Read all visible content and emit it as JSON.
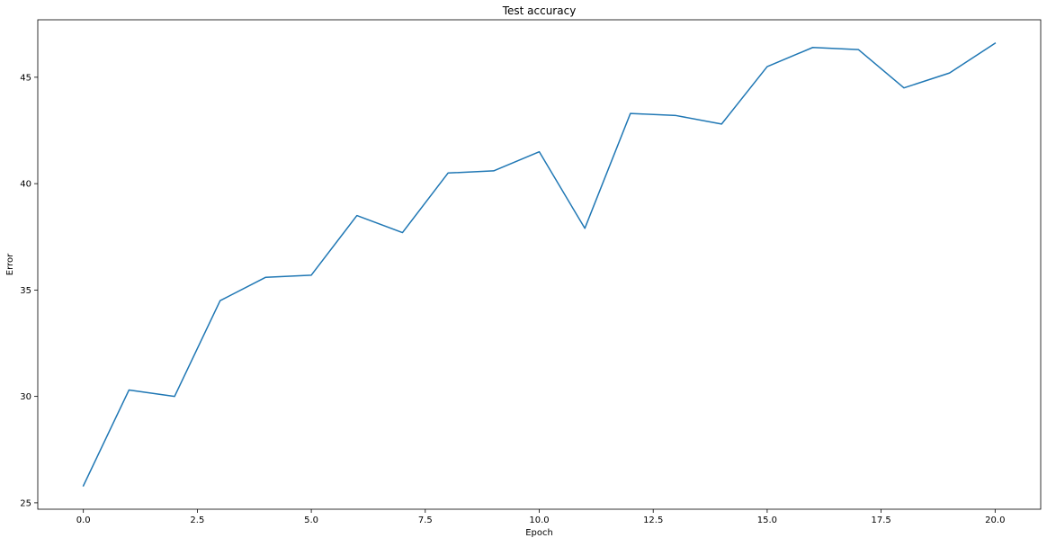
{
  "chart_data": {
    "type": "line",
    "title": "Test accuracy",
    "xlabel": "Epoch",
    "ylabel": "Error",
    "xlim": [
      -1.0,
      21.0
    ],
    "ylim": [
      24.7,
      47.7
    ],
    "xticks": [
      0.0,
      2.5,
      5.0,
      7.5,
      10.0,
      12.5,
      15.0,
      17.5,
      20.0
    ],
    "xtick_labels": [
      "0.0",
      "2.5",
      "5.0",
      "7.5",
      "10.0",
      "12.5",
      "15.0",
      "17.5",
      "20.0"
    ],
    "yticks": [
      25,
      30,
      35,
      40,
      45
    ],
    "ytick_labels": [
      "25",
      "30",
      "35",
      "40",
      "45"
    ],
    "grid": false,
    "series": [
      {
        "color": "#1f77b4",
        "x": [
          0,
          1,
          2,
          3,
          4,
          5,
          6,
          7,
          8,
          9,
          10,
          11,
          12,
          13,
          14,
          15,
          16,
          17,
          18,
          19,
          20
        ],
        "y": [
          25.8,
          30.3,
          30.0,
          34.5,
          35.6,
          35.7,
          38.5,
          37.7,
          40.5,
          40.6,
          41.5,
          37.9,
          43.3,
          43.2,
          42.8,
          45.5,
          46.4,
          46.3,
          44.5,
          45.2,
          46.6
        ]
      }
    ]
  }
}
